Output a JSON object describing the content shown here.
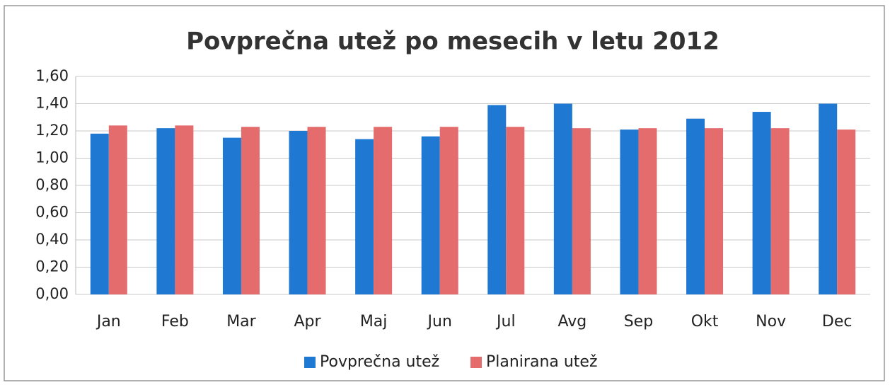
{
  "chart_data": {
    "type": "bar",
    "title": "Povprečna utež po mesecih v letu 2012",
    "categories": [
      "Jan",
      "Feb",
      "Mar",
      "Apr",
      "Maj",
      "Jun",
      "Jul",
      "Avg",
      "Sep",
      "Okt",
      "Nov",
      "Dec"
    ],
    "series": [
      {
        "name": "Povprečna utež",
        "color": "#1f78d1",
        "values": [
          1.18,
          1.22,
          1.15,
          1.2,
          1.14,
          1.16,
          1.39,
          1.4,
          1.21,
          1.29,
          1.34,
          1.4
        ]
      },
      {
        "name": "Planirana utež",
        "color": "#e46c6c",
        "values": [
          1.24,
          1.24,
          1.23,
          1.23,
          1.23,
          1.23,
          1.23,
          1.22,
          1.22,
          1.22,
          1.22,
          1.21
        ]
      }
    ],
    "ylim": [
      0,
      1.6
    ],
    "yticks": [
      {
        "value": 0,
        "label": "0,00"
      },
      {
        "value": 0.2,
        "label": "0,20"
      },
      {
        "value": 0.4,
        "label": "0,40"
      },
      {
        "value": 0.6,
        "label": "0,60"
      },
      {
        "value": 0.8,
        "label": "0,80"
      },
      {
        "value": 1.0,
        "label": "1,00"
      },
      {
        "value": 1.2,
        "label": "1,20"
      },
      {
        "value": 1.4,
        "label": "1,40"
      },
      {
        "value": 1.6,
        "label": "1,60"
      }
    ],
    "grid": true,
    "legend": "bottom"
  }
}
